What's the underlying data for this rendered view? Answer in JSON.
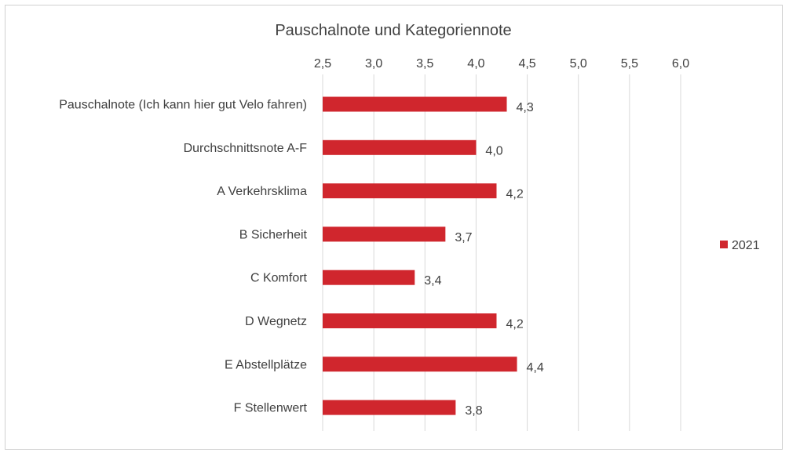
{
  "chart_data": {
    "type": "bar",
    "orientation": "horizontal",
    "title": "Pauschalnote und Kategoriennote",
    "categories": [
      "Pauschalnote (Ich kann hier gut Velo fahren)",
      "Durchschnittsnote A-F",
      "A Verkehrsklima",
      "B Sicherheit",
      "C Komfort",
      "D Wegnetz",
      "E Abstellplätze",
      "F Stellenwert"
    ],
    "series": [
      {
        "name": "2021",
        "color": "#d0262d",
        "values": [
          4.3,
          4.0,
          4.2,
          3.7,
          3.4,
          4.2,
          4.4,
          3.8
        ],
        "labels": [
          "4,3",
          "4,0",
          "4,2",
          "3,7",
          "3,4",
          "4,2",
          "4,4",
          "3,8"
        ]
      }
    ],
    "xlim": [
      2.5,
      6.0
    ],
    "xticks": [
      2.5,
      3.0,
      3.5,
      4.0,
      4.5,
      5.0,
      5.5,
      6.0
    ],
    "xtick_labels": [
      "2,5",
      "3,0",
      "3,5",
      "4,0",
      "4,5",
      "5,0",
      "5,5",
      "6,0"
    ],
    "x_axis_position": "top",
    "grid": "vertical",
    "legend_position": "right",
    "gridline_color": "#d9d9d9"
  }
}
